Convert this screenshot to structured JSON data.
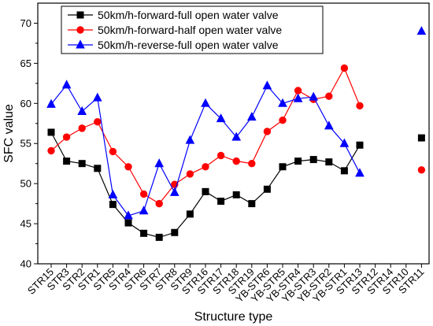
{
  "chart_data": {
    "type": "line",
    "title": "",
    "xlabel": "Structure type",
    "ylabel": "SFC value",
    "ylim": [
      40,
      72.5
    ],
    "yticks": [
      40,
      45,
      50,
      55,
      60,
      65,
      70
    ],
    "grid": false,
    "legend_position": "top-left",
    "categories": [
      "STR15",
      "STR3",
      "STR2",
      "STR1",
      "STR5",
      "STR4",
      "STR6",
      "STR7",
      "STR8",
      "STR9",
      "STR16",
      "STR17",
      "STR18",
      "STR19",
      "YB-STR6",
      "YB-STR5",
      "YB-STR4",
      "YB-STR3",
      "YB-STR2",
      "YB-STR1",
      "STR13",
      "STR12",
      "STR14",
      "STR10",
      "STR11"
    ],
    "series": [
      {
        "name": "50km/h-forward-full open water valve",
        "color": "#000000",
        "marker": "square",
        "values": [
          56.4,
          52.8,
          52.5,
          51.9,
          47.4,
          45.1,
          43.8,
          43.3,
          43.9,
          46.2,
          49.0,
          47.8,
          48.6,
          47.5,
          49.3,
          52.1,
          52.8,
          53.0,
          52.7,
          51.6,
          54.8,
          null,
          null,
          null,
          null
        ],
        "isolated": [
          {
            "category": "STR11",
            "value": 55.7
          }
        ]
      },
      {
        "name": "50km/h-forward-half open water valve",
        "color": "#ff0000",
        "marker": "circle",
        "values": [
          54.1,
          55.8,
          56.9,
          57.7,
          54.0,
          52.1,
          48.7,
          47.5,
          49.9,
          51.2,
          52.1,
          53.5,
          52.8,
          52.5,
          56.5,
          57.9,
          61.6,
          60.5,
          60.9,
          64.4,
          59.7,
          null,
          null,
          null,
          null
        ],
        "isolated": [
          {
            "category": "STR11",
            "value": 51.7
          }
        ]
      },
      {
        "name": "50km/h-reverse-full open water valve",
        "color": "#0000ff",
        "marker": "triangle",
        "values": [
          59.9,
          62.3,
          59.0,
          60.7,
          48.6,
          46.0,
          46.6,
          52.5,
          48.9,
          55.4,
          60.0,
          58.1,
          55.8,
          58.3,
          62.2,
          60.0,
          60.6,
          60.8,
          57.2,
          55.0,
          51.3,
          null,
          null,
          null,
          null
        ],
        "isolated": [
          {
            "category": "STR11",
            "value": 69.0
          }
        ]
      }
    ]
  }
}
